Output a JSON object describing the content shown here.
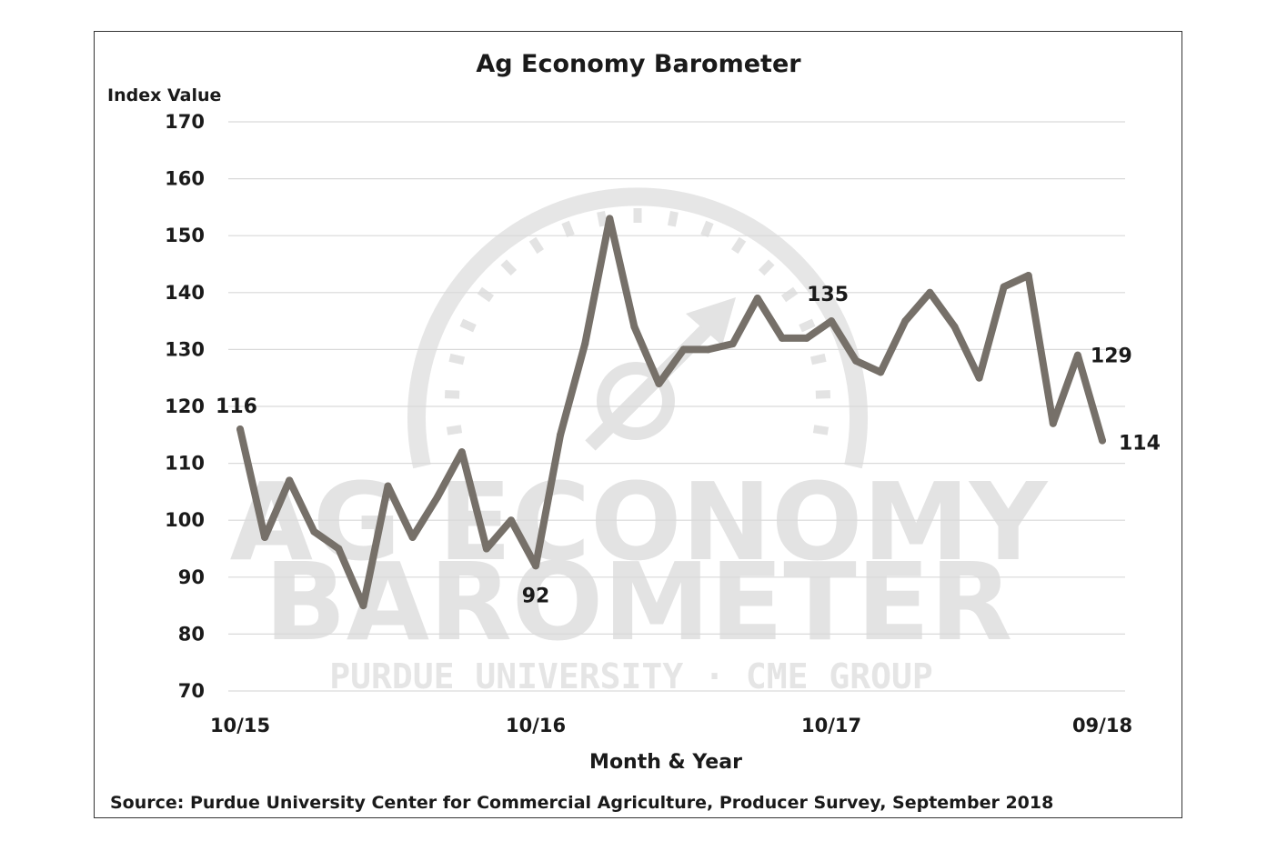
{
  "chart_data": {
    "type": "line",
    "title": "Ag Economy Barometer",
    "ylabel": "Index Value",
    "xlabel": "Month & Year",
    "source": "Source: Purdue University Center for Commercial Agriculture, Producer Survey, September 2018",
    "ylim": [
      70,
      170
    ],
    "yticks": [
      70,
      80,
      90,
      100,
      110,
      120,
      130,
      140,
      150,
      160,
      170
    ],
    "x_tick_labels": [
      {
        "index": 0,
        "label": "10/15"
      },
      {
        "index": 12,
        "label": "10/16"
      },
      {
        "index": 24,
        "label": "10/17"
      },
      {
        "index": 35,
        "label": "09/18"
      }
    ],
    "grid": true,
    "series": [
      {
        "color": "#767069",
        "values": [
          116,
          97,
          107,
          98,
          95,
          85,
          106,
          97,
          104,
          112,
          95,
          100,
          92,
          115,
          131,
          153,
          134,
          124,
          130,
          130,
          131,
          139,
          132,
          132,
          135,
          128,
          126,
          135,
          140,
          134,
          125,
          141,
          143,
          117,
          129,
          114
        ]
      }
    ],
    "annotations": [
      {
        "index": 0,
        "value": 116,
        "text": "116"
      },
      {
        "index": 12,
        "value": 92,
        "text": "92"
      },
      {
        "index": 24,
        "value": 135,
        "text": "135"
      },
      {
        "index": 34,
        "value": 129,
        "text": "129"
      },
      {
        "index": 35,
        "value": 114,
        "text": "114"
      }
    ]
  },
  "watermark": {
    "line1": "AG ECONOMY",
    "line2": "BAROMETER",
    "line3": "PURDUE UNIVERSITY · CME GROUP"
  }
}
